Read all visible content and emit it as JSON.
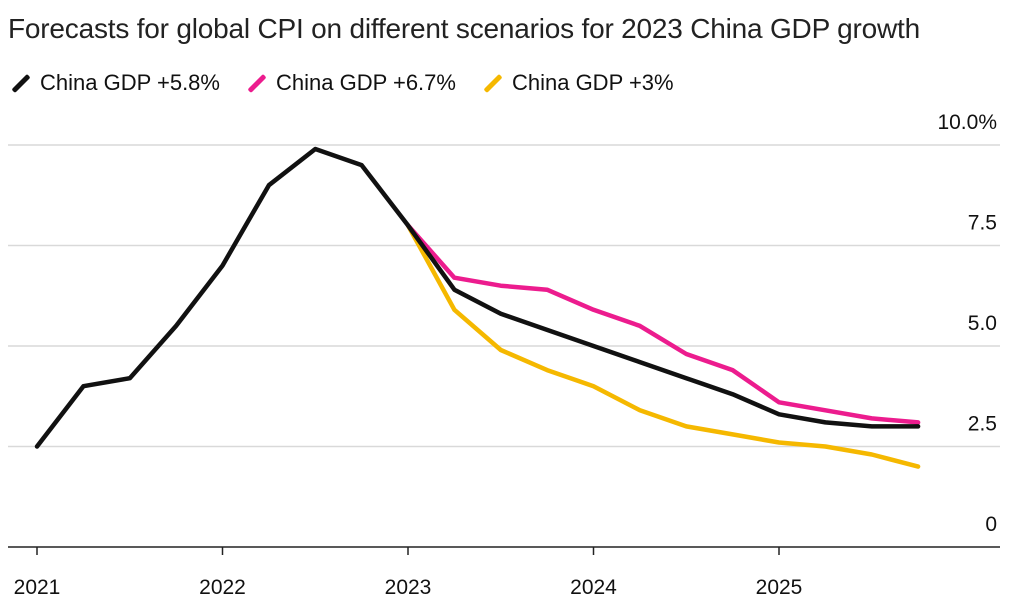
{
  "chart_data": {
    "type": "line",
    "title": "Forecasts for global CPI on different scenarios for 2023 China GDP growth",
    "xlabel": "",
    "ylabel": "",
    "ylim": [
      0,
      10
    ],
    "xlim": [
      2021,
      2026.0
    ],
    "y_ticks": [
      {
        "value": 0,
        "label": "0"
      },
      {
        "value": 2.5,
        "label": "2.5"
      },
      {
        "value": 5.0,
        "label": "5.0"
      },
      {
        "value": 7.5,
        "label": "7.5"
      },
      {
        "value": 10.0,
        "label": "10.0%"
      }
    ],
    "x_ticks": [
      {
        "value": 2021,
        "label": "2021"
      },
      {
        "value": 2022,
        "label": "2022"
      },
      {
        "value": 2023,
        "label": "2023"
      },
      {
        "value": 2024,
        "label": "2024"
      },
      {
        "value": 2025,
        "label": "2025"
      }
    ],
    "grid": "horizontal",
    "legend_position": "top-left",
    "series": [
      {
        "name": "China GDP +5.8%",
        "color": "#111111",
        "x": [
          2021.0,
          2021.25,
          2021.5,
          2021.75,
          2022.0,
          2022.25,
          2022.5,
          2022.75,
          2023.0,
          2023.25,
          2023.5,
          2023.75,
          2024.0,
          2024.25,
          2024.5,
          2024.75,
          2025.0,
          2025.25,
          2025.5,
          2025.75
        ],
        "y": [
          2.5,
          4.0,
          4.2,
          5.5,
          7.0,
          9.0,
          9.9,
          9.5,
          8.0,
          6.4,
          5.8,
          5.4,
          5.0,
          4.6,
          4.2,
          3.8,
          3.3,
          3.1,
          3.0,
          3.0
        ]
      },
      {
        "name": "China GDP +6.7%",
        "color": "#EC1C8E",
        "x": [
          2023.0,
          2023.25,
          2023.5,
          2023.75,
          2024.0,
          2024.25,
          2024.5,
          2024.75,
          2025.0,
          2025.25,
          2025.5,
          2025.75
        ],
        "y": [
          8.0,
          6.7,
          6.5,
          6.4,
          5.9,
          5.5,
          4.8,
          4.4,
          3.6,
          3.4,
          3.2,
          3.1
        ]
      },
      {
        "name": "China GDP +3%",
        "color": "#F5B800",
        "x": [
          2023.0,
          2023.25,
          2023.5,
          2023.75,
          2024.0,
          2024.25,
          2024.5,
          2024.75,
          2025.0,
          2025.25,
          2025.5,
          2025.75
        ],
        "y": [
          8.0,
          5.9,
          4.9,
          4.4,
          4.0,
          3.4,
          3.0,
          2.8,
          2.6,
          2.5,
          2.3,
          2.0
        ]
      }
    ]
  }
}
